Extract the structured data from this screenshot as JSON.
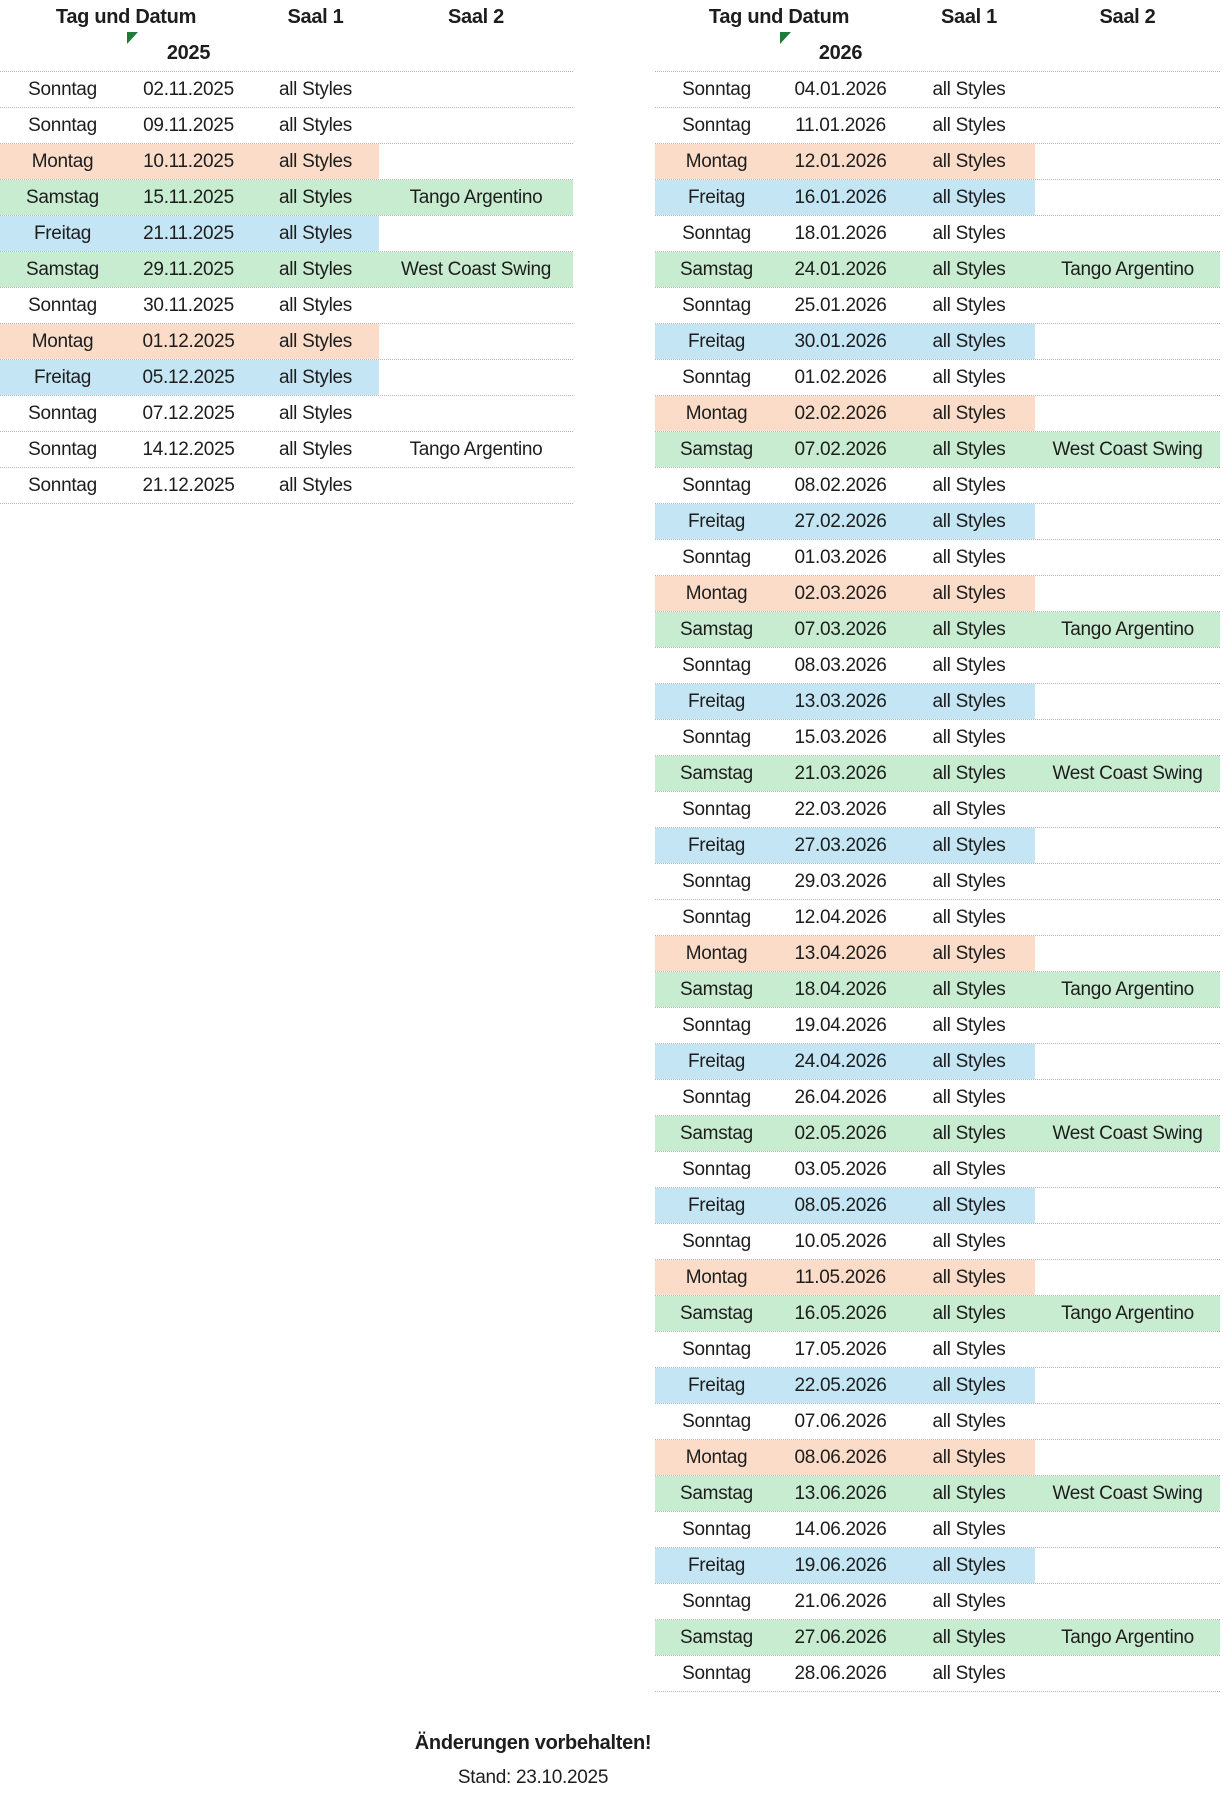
{
  "colors": {
    "monday_row": "#fbdcc8",
    "friday_row": "#c4e5f4",
    "saturday_row": "#c8ecd0",
    "indicator_green": "#1e7b3a",
    "divider": "#b3b3b3"
  },
  "icons": {
    "year_indicator": "corner-triangle"
  },
  "footer": {
    "note": "Änderungen vorbehalten!",
    "stand": "Stand: 23.10.2025"
  },
  "tables": [
    {
      "year": "2025",
      "header": {
        "tag_und_datum": "Tag und Datum",
        "saal1": "Saal 1",
        "saal2": "Saal 2"
      },
      "rows": [
        {
          "day": "Sonntag",
          "date": "02.11.2025",
          "saal1": "all Styles",
          "saal2": "",
          "highlight": "none"
        },
        {
          "day": "Sonntag",
          "date": "09.11.2025",
          "saal1": "all Styles",
          "saal2": "",
          "highlight": "none"
        },
        {
          "day": "Montag",
          "date": "10.11.2025",
          "saal1": "all Styles",
          "saal2": "",
          "highlight": "monday"
        },
        {
          "day": "Samstag",
          "date": "15.11.2025",
          "saal1": "all Styles",
          "saal2": "Tango Argentino",
          "highlight": "saturday"
        },
        {
          "day": "Freitag",
          "date": "21.11.2025",
          "saal1": "all Styles",
          "saal2": "",
          "highlight": "friday"
        },
        {
          "day": "Samstag",
          "date": "29.11.2025",
          "saal1": "all Styles",
          "saal2": "West Coast Swing",
          "highlight": "saturday"
        },
        {
          "day": "Sonntag",
          "date": "30.11.2025",
          "saal1": "all Styles",
          "saal2": "",
          "highlight": "none"
        },
        {
          "day": "Montag",
          "date": "01.12.2025",
          "saal1": "all Styles",
          "saal2": "",
          "highlight": "monday"
        },
        {
          "day": "Freitag",
          "date": "05.12.2025",
          "saal1": "all Styles",
          "saal2": "",
          "highlight": "friday"
        },
        {
          "day": "Sonntag",
          "date": "07.12.2025",
          "saal1": "all Styles",
          "saal2": "",
          "highlight": "none"
        },
        {
          "day": "Sonntag",
          "date": "14.12.2025",
          "saal1": "all Styles",
          "saal2": "Tango Argentino",
          "highlight": "none"
        },
        {
          "day": "Sonntag",
          "date": "21.12.2025",
          "saal1": "all Styles",
          "saal2": "",
          "highlight": "none"
        }
      ]
    },
    {
      "year": "2026",
      "header": {
        "tag_und_datum": "Tag und Datum",
        "saal1": "Saal 1",
        "saal2": "Saal 2"
      },
      "rows": [
        {
          "day": "Sonntag",
          "date": "04.01.2026",
          "saal1": "all Styles",
          "saal2": "",
          "highlight": "none"
        },
        {
          "day": "Sonntag",
          "date": "11.01.2026",
          "saal1": "all Styles",
          "saal2": "",
          "highlight": "none"
        },
        {
          "day": "Montag",
          "date": "12.01.2026",
          "saal1": "all Styles",
          "saal2": "",
          "highlight": "monday"
        },
        {
          "day": "Freitag",
          "date": "16.01.2026",
          "saal1": "all Styles",
          "saal2": "",
          "highlight": "friday"
        },
        {
          "day": "Sonntag",
          "date": "18.01.2026",
          "saal1": "all Styles",
          "saal2": "",
          "highlight": "none"
        },
        {
          "day": "Samstag",
          "date": "24.01.2026",
          "saal1": "all Styles",
          "saal2": "Tango Argentino",
          "highlight": "saturday"
        },
        {
          "day": "Sonntag",
          "date": "25.01.2026",
          "saal1": "all Styles",
          "saal2": "",
          "highlight": "none"
        },
        {
          "day": "Freitag",
          "date": "30.01.2026",
          "saal1": "all Styles",
          "saal2": "",
          "highlight": "friday"
        },
        {
          "day": "Sonntag",
          "date": "01.02.2026",
          "saal1": "all Styles",
          "saal2": "",
          "highlight": "none"
        },
        {
          "day": "Montag",
          "date": "02.02.2026",
          "saal1": "all Styles",
          "saal2": "",
          "highlight": "monday"
        },
        {
          "day": "Samstag",
          "date": "07.02.2026",
          "saal1": "all Styles",
          "saal2": "West Coast Swing",
          "highlight": "saturday"
        },
        {
          "day": "Sonntag",
          "date": "08.02.2026",
          "saal1": "all Styles",
          "saal2": "",
          "highlight": "none"
        },
        {
          "day": "Freitag",
          "date": "27.02.2026",
          "saal1": "all Styles",
          "saal2": "",
          "highlight": "friday"
        },
        {
          "day": "Sonntag",
          "date": "01.03.2026",
          "saal1": "all Styles",
          "saal2": "",
          "highlight": "none"
        },
        {
          "day": "Montag",
          "date": "02.03.2026",
          "saal1": "all Styles",
          "saal2": "",
          "highlight": "monday"
        },
        {
          "day": "Samstag",
          "date": "07.03.2026",
          "saal1": "all Styles",
          "saal2": "Tango Argentino",
          "highlight": "saturday"
        },
        {
          "day": "Sonntag",
          "date": "08.03.2026",
          "saal1": "all Styles",
          "saal2": "",
          "highlight": "none"
        },
        {
          "day": "Freitag",
          "date": "13.03.2026",
          "saal1": "all Styles",
          "saal2": "",
          "highlight": "friday"
        },
        {
          "day": "Sonntag",
          "date": "15.03.2026",
          "saal1": "all Styles",
          "saal2": "",
          "highlight": "none"
        },
        {
          "day": "Samstag",
          "date": "21.03.2026",
          "saal1": "all Styles",
          "saal2": "West Coast Swing",
          "highlight": "saturday"
        },
        {
          "day": "Sonntag",
          "date": "22.03.2026",
          "saal1": "all Styles",
          "saal2": "",
          "highlight": "none"
        },
        {
          "day": "Freitag",
          "date": "27.03.2026",
          "saal1": "all Styles",
          "saal2": "",
          "highlight": "friday"
        },
        {
          "day": "Sonntag",
          "date": "29.03.2026",
          "saal1": "all Styles",
          "saal2": "",
          "highlight": "none"
        },
        {
          "day": "Sonntag",
          "date": "12.04.2026",
          "saal1": "all Styles",
          "saal2": "",
          "highlight": "none"
        },
        {
          "day": "Montag",
          "date": "13.04.2026",
          "saal1": "all Styles",
          "saal2": "",
          "highlight": "monday"
        },
        {
          "day": "Samstag",
          "date": "18.04.2026",
          "saal1": "all Styles",
          "saal2": "Tango Argentino",
          "highlight": "saturday"
        },
        {
          "day": "Sonntag",
          "date": "19.04.2026",
          "saal1": "all Styles",
          "saal2": "",
          "highlight": "none"
        },
        {
          "day": "Freitag",
          "date": "24.04.2026",
          "saal1": "all Styles",
          "saal2": "",
          "highlight": "friday"
        },
        {
          "day": "Sonntag",
          "date": "26.04.2026",
          "saal1": "all Styles",
          "saal2": "",
          "highlight": "none"
        },
        {
          "day": "Samstag",
          "date": "02.05.2026",
          "saal1": "all Styles",
          "saal2": "West Coast Swing",
          "highlight": "saturday"
        },
        {
          "day": "Sonntag",
          "date": "03.05.2026",
          "saal1": "all Styles",
          "saal2": "",
          "highlight": "none"
        },
        {
          "day": "Freitag",
          "date": "08.05.2026",
          "saal1": "all Styles",
          "saal2": "",
          "highlight": "friday"
        },
        {
          "day": "Sonntag",
          "date": "10.05.2026",
          "saal1": "all Styles",
          "saal2": "",
          "highlight": "none"
        },
        {
          "day": "Montag",
          "date": "11.05.2026",
          "saal1": "all Styles",
          "saal2": "",
          "highlight": "monday"
        },
        {
          "day": "Samstag",
          "date": "16.05.2026",
          "saal1": "all Styles",
          "saal2": "Tango Argentino",
          "highlight": "saturday"
        },
        {
          "day": "Sonntag",
          "date": "17.05.2026",
          "saal1": "all Styles",
          "saal2": "",
          "highlight": "none"
        },
        {
          "day": "Freitag",
          "date": "22.05.2026",
          "saal1": "all Styles",
          "saal2": "",
          "highlight": "friday"
        },
        {
          "day": "Sonntag",
          "date": "07.06.2026",
          "saal1": "all Styles",
          "saal2": "",
          "highlight": "none"
        },
        {
          "day": "Montag",
          "date": "08.06.2026",
          "saal1": "all Styles",
          "saal2": "",
          "highlight": "monday"
        },
        {
          "day": "Samstag",
          "date": "13.06.2026",
          "saal1": "all Styles",
          "saal2": "West Coast Swing",
          "highlight": "saturday"
        },
        {
          "day": "Sonntag",
          "date": "14.06.2026",
          "saal1": "all Styles",
          "saal2": "",
          "highlight": "none"
        },
        {
          "day": "Freitag",
          "date": "19.06.2026",
          "saal1": "all Styles",
          "saal2": "",
          "highlight": "friday"
        },
        {
          "day": "Sonntag",
          "date": "21.06.2026",
          "saal1": "all Styles",
          "saal2": "",
          "highlight": "none"
        },
        {
          "day": "Samstag",
          "date": "27.06.2026",
          "saal1": "all Styles",
          "saal2": "Tango Argentino",
          "highlight": "saturday"
        },
        {
          "day": "Sonntag",
          "date": "28.06.2026",
          "saal1": "all Styles",
          "saal2": "",
          "highlight": "none"
        }
      ]
    }
  ]
}
